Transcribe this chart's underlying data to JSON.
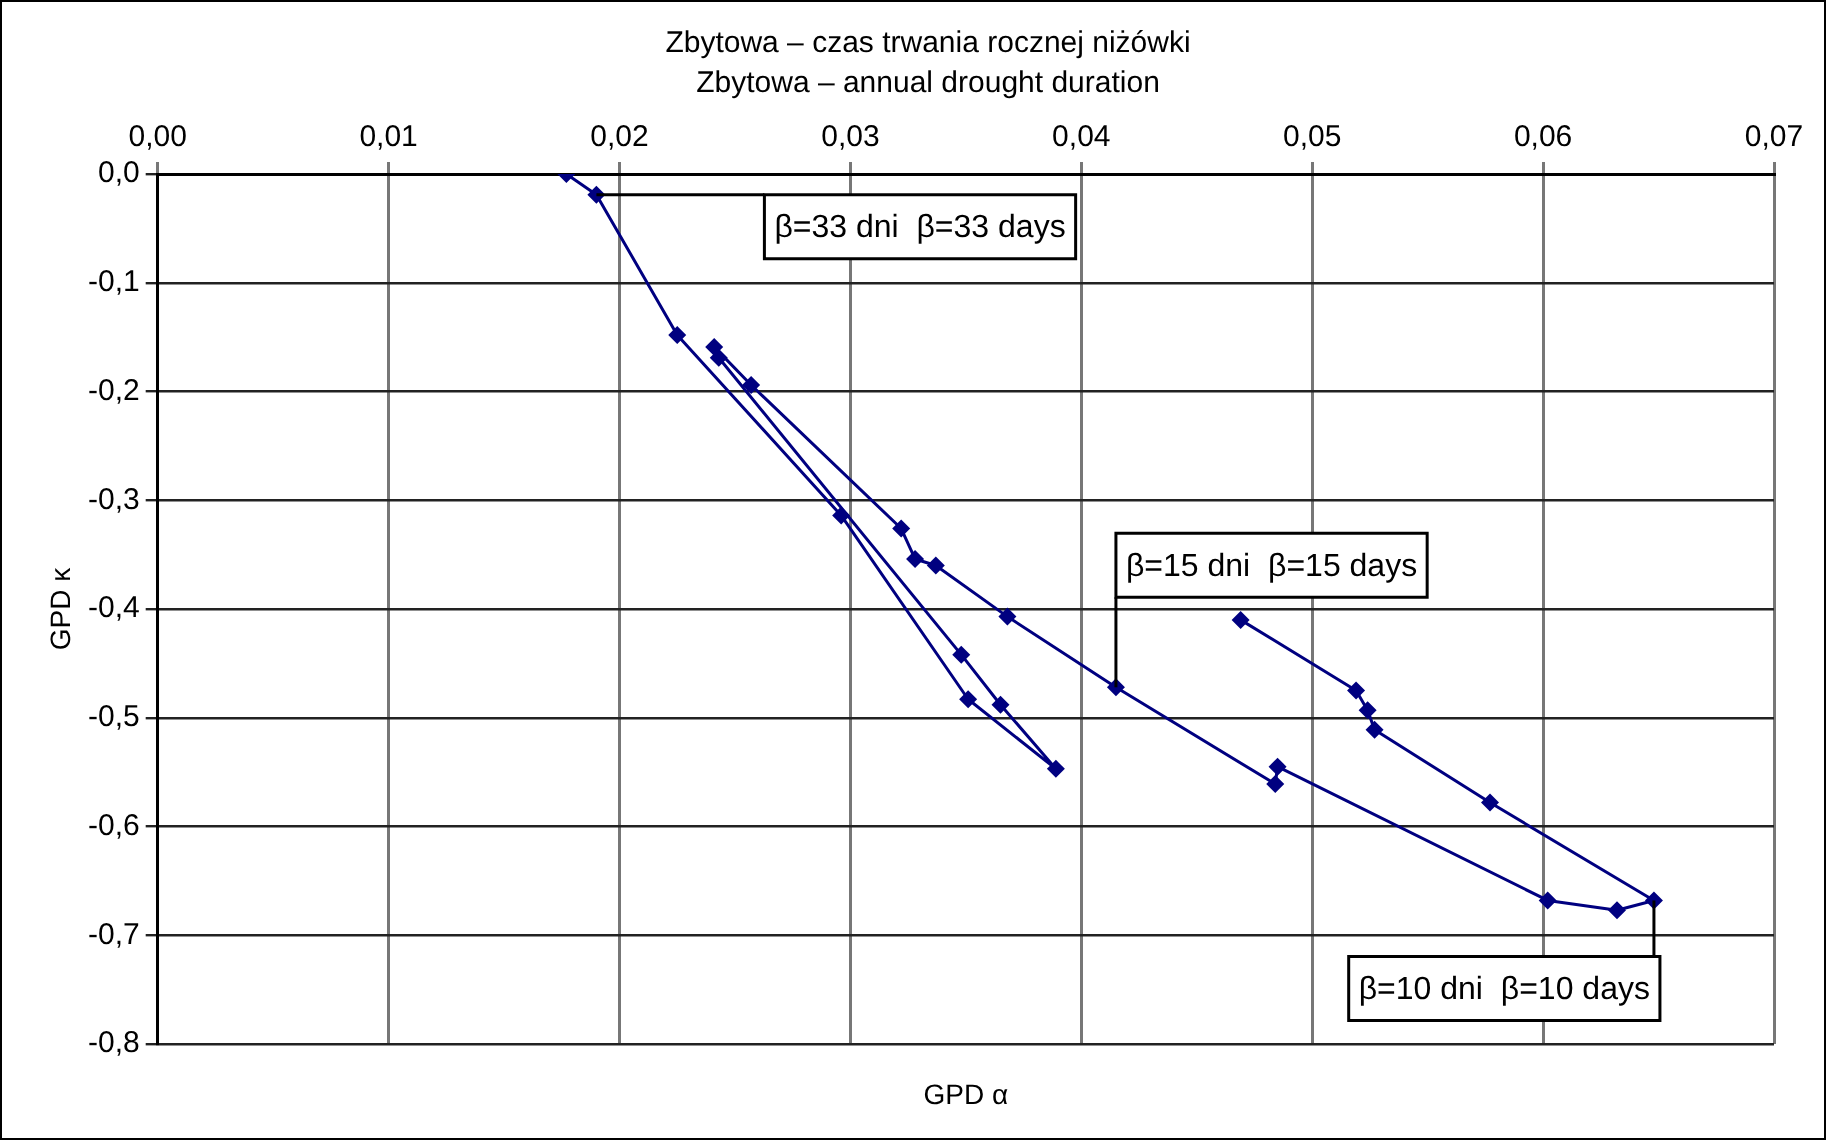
{
  "chart_data": {
    "type": "line",
    "title": "Zbytowa – czas trwania rocznej niżówki",
    "subtitle": "Zbytowa – annual drought duration",
    "xlabel": "GPD α",
    "ylabel": "GPD κ",
    "x": [
      0.0177,
      0.019,
      0.0225,
      0.0296,
      0.0351,
      0.0389,
      0.0365,
      0.0348,
      0.0243,
      0.0241,
      0.0257,
      0.0322,
      0.0328,
      0.0337,
      0.0368,
      0.0415,
      0.0484,
      0.0485,
      0.0602,
      0.0632,
      0.0648,
      0.0577,
      0.0527,
      0.0524,
      0.0519,
      0.0469
    ],
    "series": [
      {
        "color": "#000080",
        "values": [
          0,
          -0.019,
          -0.148,
          -0.314,
          -0.483,
          -0.547,
          -0.488,
          -0.442,
          -0.169,
          -0.159,
          -0.194,
          -0.326,
          -0.354,
          -0.36,
          -0.407,
          -0.472,
          -0.561,
          -0.545,
          -0.668,
          -0.677,
          -0.668,
          -0.578,
          -0.511,
          -0.493,
          -0.475,
          -0.41
        ]
      }
    ],
    "xlim": [
      0,
      0.07
    ],
    "xticks": [
      {
        "value": 0,
        "label": "0,00"
      },
      {
        "value": 0.01,
        "label": "0,01"
      },
      {
        "value": 0.02,
        "label": "0,02"
      },
      {
        "value": 0.03,
        "label": "0,03"
      },
      {
        "value": 0.04,
        "label": "0,04"
      },
      {
        "value": 0.05,
        "label": "0,05"
      },
      {
        "value": 0.06,
        "label": "0,06"
      },
      {
        "value": 0.07,
        "label": "0,07"
      }
    ],
    "ylim": [
      -0.8,
      0
    ],
    "yticks": [
      {
        "value": 0,
        "label": "0,0"
      },
      {
        "value": -0.1,
        "label": "-0,1"
      },
      {
        "value": -0.2,
        "label": "-0,2"
      },
      {
        "value": -0.3,
        "label": "-0,3"
      },
      {
        "value": -0.4,
        "label": "-0,4"
      },
      {
        "value": -0.5,
        "label": "-0,5"
      },
      {
        "value": -0.6,
        "label": "-0,6"
      },
      {
        "value": -0.7,
        "label": "-0,7"
      },
      {
        "value": -0.8,
        "label": "-0,8"
      }
    ],
    "grid": true,
    "legend": false,
    "marker": "diamond",
    "line_style": "solid",
    "annotations": [
      {
        "text": "β=33 dni  β=33 days",
        "x": 0.019,
        "y": -0.019
      },
      {
        "text": "β=15 dni  β=15 days",
        "x": 0.0415,
        "y": -0.472
      },
      {
        "text": "β=10 dni  β=10 days",
        "x": 0.0648,
        "y": -0.668
      }
    ]
  }
}
